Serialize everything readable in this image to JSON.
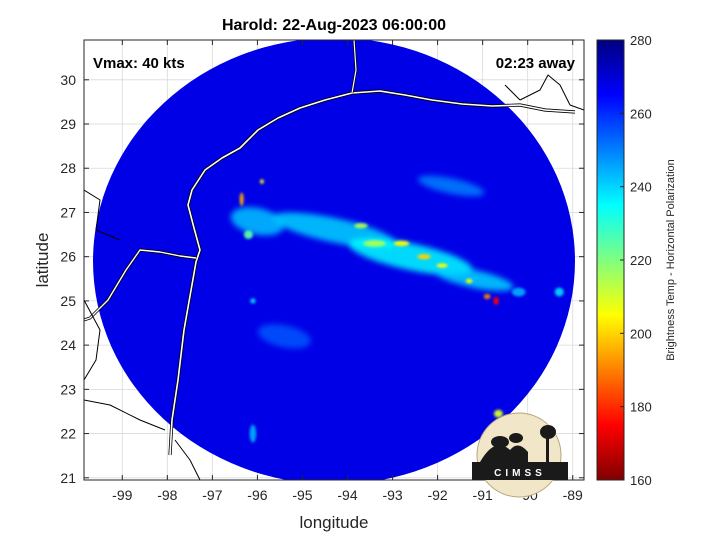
{
  "chart_data": {
    "type": "heatmap",
    "title": "Harold: 22-Aug-2023 06:00:00",
    "xlabel": "longitude",
    "ylabel": "latitude",
    "xlim": [
      -99.85,
      -88.75
    ],
    "ylim": [
      20.95,
      30.9
    ],
    "xticks": [
      -99,
      -98,
      -97,
      -96,
      -95,
      -94,
      -93,
      -92,
      -91,
      -90,
      -89
    ],
    "yticks": [
      21,
      22,
      23,
      24,
      25,
      26,
      27,
      28,
      29,
      30
    ],
    "grid": true,
    "swath": {
      "center_lon": -94.3,
      "center_lat": 25.9,
      "radius_deg_lon": 5.35,
      "radius_deg_lat": 5.05,
      "background_value": 268
    },
    "annotations": {
      "vmax": "Vmax: 40 kts",
      "time_offset": "02:23 away"
    },
    "colorbar": {
      "label": "Brightness Temp - Horizontal Polarization",
      "range": [
        160,
        280
      ],
      "ticks": [
        160,
        180,
        200,
        220,
        240,
        260,
        280
      ],
      "colormap": "jet"
    },
    "features": [
      {
        "lon": -94.3,
        "lat": 26.6,
        "value": 240,
        "w": 2.8,
        "h": 0.55
      },
      {
        "lon": -92.6,
        "lat": 26.0,
        "value": 235,
        "w": 2.8,
        "h": 0.6
      },
      {
        "lon": -91.2,
        "lat": 25.5,
        "value": 240,
        "w": 1.8,
        "h": 0.4
      },
      {
        "lon": -96.0,
        "lat": 26.8,
        "value": 242,
        "w": 1.2,
        "h": 0.6
      },
      {
        "lon": -93.4,
        "lat": 26.3,
        "value": 215,
        "w": 0.5,
        "h": 0.15
      },
      {
        "lon": -92.8,
        "lat": 26.3,
        "value": 205,
        "w": 0.35,
        "h": 0.12
      },
      {
        "lon": -92.3,
        "lat": 26.0,
        "value": 200,
        "w": 0.3,
        "h": 0.12
      },
      {
        "lon": -91.9,
        "lat": 25.8,
        "value": 205,
        "w": 0.25,
        "h": 0.1
      },
      {
        "lon": -93.7,
        "lat": 26.7,
        "value": 215,
        "w": 0.3,
        "h": 0.12
      },
      {
        "lon": -90.7,
        "lat": 25.0,
        "value": 175,
        "w": 0.12,
        "h": 0.18
      },
      {
        "lon": -90.9,
        "lat": 25.1,
        "value": 190,
        "w": 0.15,
        "h": 0.12
      },
      {
        "lon": -91.3,
        "lat": 25.45,
        "value": 205,
        "w": 0.15,
        "h": 0.1
      },
      {
        "lon": -96.35,
        "lat": 27.3,
        "value": 195,
        "w": 0.08,
        "h": 0.3
      },
      {
        "lon": -95.9,
        "lat": 27.7,
        "value": 205,
        "w": 0.08,
        "h": 0.1
      },
      {
        "lon": -96.2,
        "lat": 26.5,
        "value": 225,
        "w": 0.2,
        "h": 0.2
      },
      {
        "lon": -90.65,
        "lat": 22.45,
        "value": 210,
        "w": 0.2,
        "h": 0.18
      },
      {
        "lon": -90.2,
        "lat": 25.2,
        "value": 245,
        "w": 0.3,
        "h": 0.2
      },
      {
        "lon": -89.3,
        "lat": 25.2,
        "value": 240,
        "w": 0.2,
        "h": 0.2
      },
      {
        "lon": -96.1,
        "lat": 25.0,
        "value": 240,
        "w": 0.12,
        "h": 0.12
      },
      {
        "lon": -96.1,
        "lat": 22.0,
        "value": 245,
        "w": 0.15,
        "h": 0.4
      },
      {
        "lon": -91.7,
        "lat": 27.6,
        "value": 250,
        "w": 1.5,
        "h": 0.35
      },
      {
        "lon": -95.4,
        "lat": 24.2,
        "value": 255,
        "w": 1.2,
        "h": 0.5
      }
    ]
  }
}
